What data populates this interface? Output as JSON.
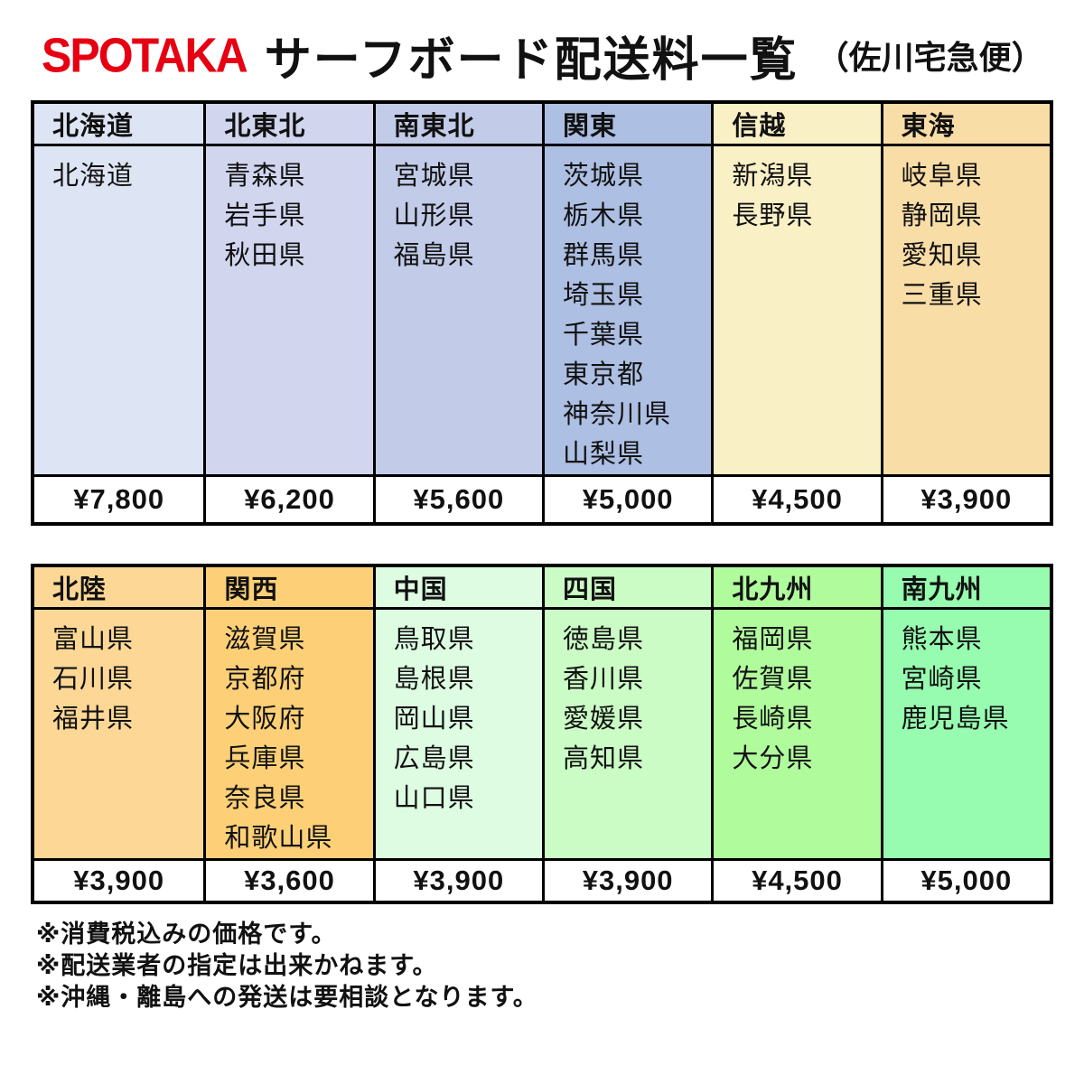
{
  "header": {
    "logo": "SPOTAKA",
    "title": "サーフボード配送料一覧",
    "subtitle": "（佐川宅急便）"
  },
  "colors": {
    "brand_red": "#e60012",
    "border": "#000000",
    "price_bg": "#ffffff"
  },
  "tables": [
    {
      "columns": [
        {
          "region": "北海道",
          "color": "#dde4f3",
          "prefectures": [
            "北海道"
          ],
          "price": "¥7,800"
        },
        {
          "region": "北東北",
          "color": "#d1d5ee",
          "prefectures": [
            "青森県",
            "岩手県",
            "秋田県"
          ],
          "price": "¥6,200"
        },
        {
          "region": "南東北",
          "color": "#c2cce9",
          "prefectures": [
            "宮城県",
            "山形県",
            "福島県"
          ],
          "price": "¥5,600"
        },
        {
          "region": "関東",
          "color": "#adbfe3",
          "prefectures": [
            "茨城県",
            "栃木県",
            "群馬県",
            "埼玉県",
            "千葉県",
            "東京都",
            "神奈川県",
            "山梨県"
          ],
          "price": "¥5,000"
        },
        {
          "region": "信越",
          "color": "#faf0c6",
          "prefectures": [
            "新潟県",
            "長野県"
          ],
          "price": "¥4,500"
        },
        {
          "region": "東海",
          "color": "#f9dda6",
          "prefectures": [
            "岐阜県",
            "静岡県",
            "愛知県",
            "三重県"
          ],
          "price": "¥3,900"
        }
      ]
    },
    {
      "columns": [
        {
          "region": "北陸",
          "color": "#fdd795",
          "prefectures": [
            "富山県",
            "石川県",
            "福井県"
          ],
          "price": "¥3,900"
        },
        {
          "region": "関西",
          "color": "#fdd077",
          "prefectures": [
            "滋賀県",
            "京都府",
            "大阪府",
            "兵庫県",
            "奈良県",
            "和歌山県"
          ],
          "price": "¥3,600"
        },
        {
          "region": "中国",
          "color": "#ddfce2",
          "prefectures": [
            "鳥取県",
            "島根県",
            "岡山県",
            "広島県",
            "山口県"
          ],
          "price": "¥3,900"
        },
        {
          "region": "四国",
          "color": "#cbfcc5",
          "prefectures": [
            "徳島県",
            "香川県",
            "愛媛県",
            "高知県"
          ],
          "price": "¥3,900"
        },
        {
          "region": "北九州",
          "color": "#b0fc9d",
          "prefectures": [
            "福岡県",
            "佐賀県",
            "長崎県",
            "大分県"
          ],
          "price": "¥4,500"
        },
        {
          "region": "南九州",
          "color": "#97fcaf",
          "prefectures": [
            "熊本県",
            "宮崎県",
            "鹿児島県"
          ],
          "price": "¥5,000"
        }
      ]
    }
  ],
  "notes": [
    "※消費税込みの価格です。",
    "※配送業者の指定は出来かねます。",
    "※沖縄・離島への発送は要相談となります。"
  ]
}
